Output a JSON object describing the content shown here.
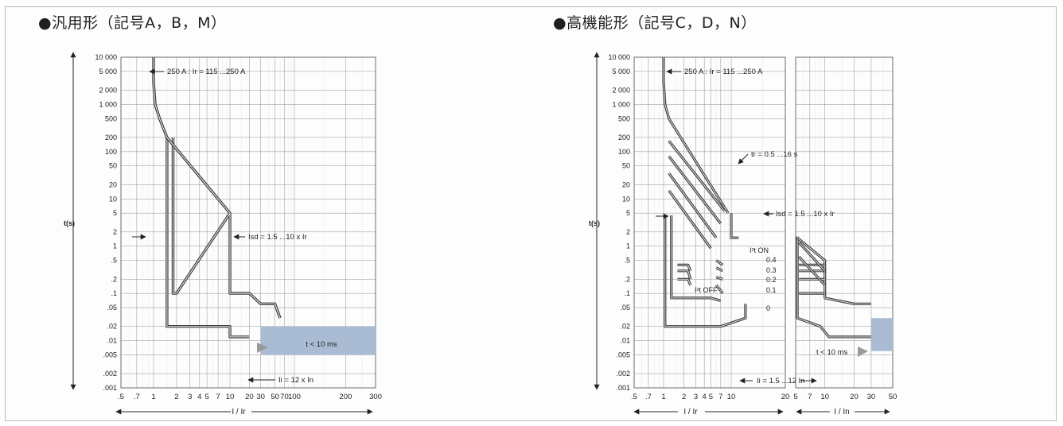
{
  "panels": {
    "left_title": "●汎用形（記号A，B，M）",
    "right_title": "●高機能形（記号C，D，N）"
  },
  "colors": {
    "grid": "#8f8f8f",
    "curve": "#3a3a3a",
    "shade": "#a9bcd3",
    "arrow_fill": "#9a9a9a"
  },
  "chart_data": [
    {
      "type": "line",
      "title": "●汎用形（記号A，B，M）",
      "ylabel": "t(s)",
      "xlabel": "I / Ir",
      "y_scale": "log",
      "x_scale": "log",
      "ylim": [
        0.001,
        10000
      ],
      "xlim": [
        0.5,
        300
      ],
      "yticks": [
        "10 000",
        "5 000",
        "2 000",
        "1 000",
        "500",
        "200",
        "100",
        "50",
        "20",
        "10",
        "5",
        "2",
        "1",
        ".5",
        ".2",
        ".1",
        ".05",
        ".02",
        ".01",
        ".005",
        ".002",
        ".001"
      ],
      "xticks": [
        ".5",
        ".7",
        "1",
        "2",
        "3",
        "4",
        "5",
        "7",
        "10",
        "20",
        "30",
        "50",
        "70",
        "100",
        "200",
        "300"
      ],
      "annotations": [
        "250 A : Ir = 115 ...250 A",
        "Isd = 1.5 ...10 x Ir",
        "Ii = 12 x In",
        "t < 10 ms"
      ],
      "series": [
        {
          "x": [
            1,
            1,
            1.05,
            1.2,
            1.5,
            1.5,
            1.5,
            1.6,
            2,
            10,
            10,
            20
          ],
          "y": [
            10000,
            3000,
            1000,
            500,
            200,
            100,
            0.02,
            0.02,
            0.02,
            0.02,
            0.012,
            0.012
          ]
        },
        {
          "x": [
            1.8,
            1.8,
            2,
            10,
            10,
            10,
            20,
            30,
            50,
            60
          ],
          "y": [
            200,
            0.1,
            0.1,
            5,
            5,
            0.1,
            0.1,
            0.06,
            0.06,
            0.03
          ]
        }
      ],
      "shaded_region": {
        "x": [
          30,
          300
        ],
        "y": [
          0.005,
          0.02
        ],
        "label": "t < 10 ms"
      }
    },
    {
      "type": "line",
      "title": "●高機能形（記号C，D，N）",
      "ylabel": "t(s)",
      "xlabel": [
        "I / Ir",
        "I / In"
      ],
      "y_scale": "log",
      "ylim": [
        0.001,
        10000
      ],
      "yticks": [
        "10 000",
        "5 000",
        "2 000",
        "1 000",
        "500",
        "200",
        "100",
        "50",
        "20",
        "10",
        "5",
        "2",
        "1",
        ".5",
        ".2",
        ".1",
        ".05",
        ".02",
        ".01",
        ".005",
        ".002",
        ".001"
      ],
      "xticks_left": [
        ".5",
        ".7",
        "1",
        "2",
        "3",
        "4",
        "5",
        "7",
        "10",
        "20"
      ],
      "xticks_right": [
        "5",
        "7",
        "10",
        "20",
        "30",
        "50"
      ],
      "annotations": [
        "250 A : Ir = 115 ...250 A",
        "tr = 0.5 ...16 s",
        "Isd = 1.5 ...10 x Ir",
        "I²t ON",
        "I²t OFF",
        "0.4",
        "0.3",
        "0.2",
        "0.1",
        "0",
        "t < 10 ms",
        "Ii = 1.5 ...12 In"
      ],
      "shaded_region": {
        "x": [
          30,
          50
        ],
        "y": [
          0.006,
          0.03
        ],
        "label": "t < 10 ms"
      }
    }
  ],
  "labels": {
    "left": {
      "ylabel": "t(s)",
      "xlabel": "I / Ir",
      "ann_250": "250 A : Ir = 115 ...250 A",
      "ann_isd": "Isd = 1.5 ...10 x Ir",
      "ann_ii": "Ii = 12 x In",
      "ann_t": "t < 10 ms"
    },
    "right": {
      "ylabel": "t(s)",
      "xlabel_a": "I / Ir",
      "xlabel_b": "I / In",
      "ann_250": "250 A : Ir = 115 ...250 A",
      "ann_tr": "tr = 0.5 ...16 s",
      "ann_isd": "Isd = 1.5 ...10 x Ir",
      "ann_i2t_on": "I²t ON",
      "ann_i2t_off": "I²t OFF",
      "ann_04": "0.4",
      "ann_03": "0.3",
      "ann_02": "0.2",
      "ann_01": "0.1",
      "ann_0": "0",
      "ann_t": "t < 10 ms",
      "ann_ii": "Ii = 1.5 ...12 In"
    }
  }
}
